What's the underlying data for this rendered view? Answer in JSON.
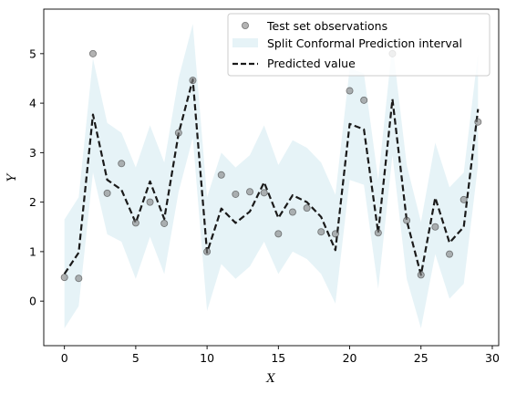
{
  "chart_data": {
    "type": "line",
    "title": "",
    "xlabel": "X",
    "ylabel": "Y",
    "xlim": [
      -1.45,
      30.45
    ],
    "ylim": [
      -0.9,
      5.9
    ],
    "xticks": [
      0,
      5,
      10,
      15,
      20,
      25,
      30
    ],
    "yticks": [
      0,
      1,
      2,
      3,
      4,
      5
    ],
    "grid": false,
    "legend_position": "top-right",
    "colors": {
      "observations": "#808080",
      "interval": "#add8e6",
      "predicted": "#1a1a1a"
    },
    "x": [
      0,
      1,
      2,
      3,
      4,
      5,
      6,
      7,
      8,
      9,
      10,
      11,
      12,
      13,
      14,
      15,
      16,
      17,
      18,
      19,
      20,
      21,
      22,
      23,
      24,
      25,
      26,
      27,
      28,
      29
    ],
    "series": [
      {
        "name": "Test set observations",
        "kind": "scatter",
        "y": [
          0.48,
          0.46,
          5.0,
          2.18,
          2.78,
          1.58,
          2.0,
          1.57,
          3.4,
          4.46,
          1.0,
          2.55,
          2.16,
          2.21,
          2.19,
          1.36,
          1.8,
          1.88,
          1.4,
          1.36,
          4.25,
          4.06,
          1.38,
          5.0,
          1.63,
          0.53,
          1.5,
          0.95,
          2.05,
          3.62
        ]
      },
      {
        "name": "Split Conformal Prediction interval",
        "kind": "band",
        "lower": [
          -0.55,
          -0.1,
          2.6,
          1.35,
          1.2,
          0.45,
          1.3,
          0.55,
          2.2,
          3.3,
          -0.2,
          0.75,
          0.45,
          0.7,
          1.2,
          0.55,
          1.0,
          0.85,
          0.55,
          -0.05,
          2.45,
          2.35,
          0.25,
          2.95,
          0.45,
          -0.55,
          0.95,
          0.05,
          0.35,
          2.75
        ],
        "upper": [
          1.65,
          2.1,
          4.9,
          3.6,
          3.4,
          2.7,
          3.55,
          2.8,
          4.5,
          5.6,
          2.1,
          3.0,
          2.7,
          2.95,
          3.55,
          2.75,
          3.25,
          3.1,
          2.8,
          2.15,
          4.7,
          4.6,
          2.45,
          5.2,
          2.75,
          1.6,
          3.2,
          2.3,
          2.6,
          5.0
        ]
      },
      {
        "name": "Predicted value",
        "kind": "line",
        "y": [
          0.55,
          0.98,
          3.77,
          2.45,
          2.25,
          1.58,
          2.42,
          1.66,
          3.38,
          4.48,
          0.98,
          1.87,
          1.58,
          1.81,
          2.4,
          1.68,
          2.14,
          2.0,
          1.7,
          1.03,
          3.58,
          3.47,
          1.38,
          4.08,
          1.63,
          0.53,
          2.09,
          1.18,
          1.5,
          3.88
        ]
      }
    ]
  }
}
